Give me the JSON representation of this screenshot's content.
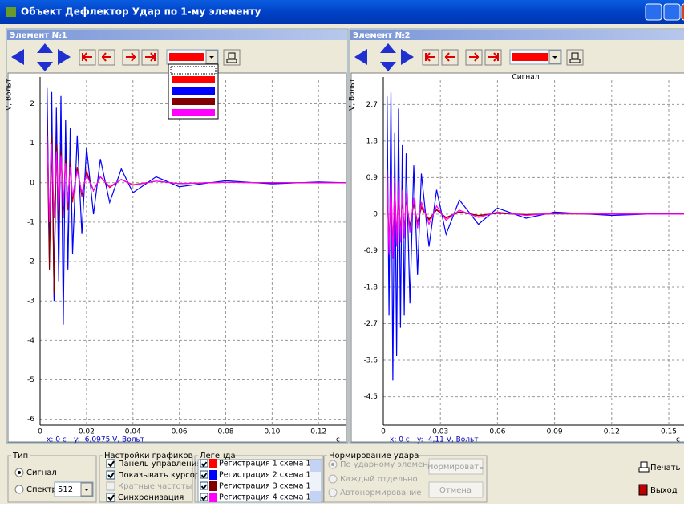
{
  "window": {
    "title": "Объект Дефлектор Удар по 1-му элементу"
  },
  "panels": [
    {
      "title": "Элемент №1"
    },
    {
      "title": "Элемент №2"
    }
  ],
  "chart_data": [
    {
      "type": "line",
      "ylabel": "V, Вольт",
      "xlabel": "с",
      "grid": true,
      "annotations": [
        "x: 0 с",
        "y: -6,0975 V, Вольт"
      ],
      "xlim": [
        0,
        0.132
      ],
      "ylim": [
        -6.15,
        2.6
      ],
      "xticks": [
        0,
        0.02,
        0.04,
        0.06,
        0.08,
        {
          "value": 0.1,
          "label": "0.10"
        },
        0.12
      ],
      "yticks": [
        -6,
        -5,
        -4,
        -3,
        -2,
        -1,
        0,
        1,
        2
      ],
      "x": [
        0.003,
        0.004,
        0.005,
        0.006,
        0.007,
        0.008,
        0.009,
        0.01,
        0.011,
        0.012,
        0.013,
        0.014,
        0.016,
        0.018,
        0.02,
        0.023,
        0.026,
        0.03,
        0.035,
        0.04,
        0.05,
        0.06,
        0.08,
        0.1,
        0.12,
        0.132
      ],
      "series": [
        {
          "color": "#ff0000",
          "values": [
            2.0,
            -1.5,
            1.8,
            -2.9,
            1.7,
            -1.2,
            1.0,
            -0.9,
            0.8,
            -0.7,
            0.6,
            -0.5,
            0.4,
            -0.35,
            0.3,
            -0.2,
            0.15,
            -0.12,
            0.08,
            -0.05,
            0.04,
            -0.02,
            0.01,
            0,
            0,
            0
          ]
        },
        {
          "color": "#0000ff",
          "values": [
            2.4,
            -2.0,
            2.3,
            -3.0,
            1.9,
            -2.5,
            2.2,
            -3.6,
            1.6,
            -2.2,
            1.4,
            -1.8,
            1.2,
            -1.3,
            0.9,
            -0.8,
            0.6,
            -0.5,
            0.35,
            -0.25,
            0.15,
            -0.1,
            0.05,
            -0.03,
            0.02,
            0
          ]
        },
        {
          "color": "#800000",
          "values": [
            1.5,
            -2.2,
            1.2,
            -2.8,
            1.0,
            -1.0,
            0.8,
            -0.7,
            0.6,
            -0.5,
            0.5,
            -0.4,
            0.35,
            -0.3,
            0.25,
            -0.2,
            0.15,
            -0.1,
            0.08,
            -0.06,
            0.04,
            -0.02,
            0.01,
            0,
            0,
            0
          ]
        },
        {
          "color": "#ff00ff",
          "values": [
            1.2,
            -1.0,
            1.0,
            -0.9,
            0.8,
            -0.7,
            0.7,
            -0.6,
            0.5,
            -0.5,
            0.4,
            -0.35,
            0.3,
            -0.25,
            0.2,
            -0.2,
            0.15,
            -0.1,
            0.08,
            -0.06,
            0.04,
            -0.02,
            0.01,
            0,
            0,
            0
          ]
        }
      ]
    },
    {
      "type": "line",
      "title": "Сигнал",
      "ylabel": "V, Вольт",
      "xlabel": "с",
      "grid": true,
      "annotations": [
        "x: 0 с",
        "y: -4,11 V, Вольт"
      ],
      "xlim": [
        0,
        0.158
      ],
      "ylim": [
        -5.2,
        3.3
      ],
      "xticks": [
        0,
        0.03,
        0.06,
        0.09,
        0.12,
        0.15
      ],
      "yticks": [
        -4.5,
        -3.6,
        -2.7,
        -1.8,
        -0.9,
        0,
        0.9,
        1.8,
        2.7
      ],
      "x": [
        0.002,
        0.003,
        0.004,
        0.005,
        0.006,
        0.007,
        0.008,
        0.009,
        0.01,
        0.011,
        0.012,
        0.014,
        0.016,
        0.018,
        0.02,
        0.024,
        0.028,
        0.033,
        0.04,
        0.05,
        0.06,
        0.075,
        0.09,
        0.12,
        0.15,
        0.158
      ],
      "series": [
        {
          "color": "#ff0000",
          "values": [
            1.0,
            -0.9,
            0.9,
            -1.0,
            0.8,
            -0.7,
            0.7,
            -0.6,
            0.5,
            -0.5,
            0.4,
            -0.35,
            0.3,
            -0.25,
            0.2,
            -0.15,
            0.12,
            -0.1,
            0.06,
            -0.04,
            0.03,
            -0.02,
            0.01,
            0,
            0,
            0
          ]
        },
        {
          "color": "#0000ff",
          "values": [
            2.9,
            -2.5,
            3.0,
            -4.1,
            2.0,
            -3.5,
            2.6,
            -2.8,
            1.7,
            -2.5,
            1.5,
            -2.2,
            1.2,
            -1.5,
            1.0,
            -0.8,
            0.6,
            -0.5,
            0.35,
            -0.25,
            0.15,
            -0.1,
            0.05,
            -0.03,
            0.02,
            0
          ]
        },
        {
          "color": "#800000",
          "values": [
            0.8,
            -0.8,
            0.7,
            -0.9,
            0.6,
            -0.6,
            0.5,
            -0.5,
            0.4,
            -0.4,
            0.35,
            -0.3,
            0.25,
            -0.2,
            0.15,
            -0.12,
            0.1,
            -0.08,
            0.05,
            -0.03,
            0.02,
            -0.01,
            0.01,
            0,
            0,
            0
          ]
        },
        {
          "color": "#ff00ff",
          "values": [
            1.1,
            -1.0,
            1.0,
            -1.1,
            0.9,
            -0.8,
            0.8,
            -0.7,
            0.6,
            -0.6,
            0.5,
            -0.45,
            0.4,
            -0.35,
            0.3,
            -0.25,
            0.2,
            -0.15,
            0.1,
            -0.08,
            0.05,
            -0.03,
            0.02,
            0,
            0,
            0
          ]
        }
      ]
    }
  ],
  "controls": {
    "type_group": {
      "title": "Тип",
      "options": [
        "Сигнал",
        "Спектр"
      ],
      "spectrum_size": "512"
    },
    "settings_group": {
      "title": "Настройки графиков",
      "options": [
        "Панель управления",
        "Показывать курсор",
        "Кратные частоты",
        "Синхронизация"
      ]
    },
    "legend": {
      "title": "Легенда",
      "items": [
        {
          "name": "Регистрация 1 схема 1",
          "color": "#ff0000"
        },
        {
          "name": "Регистрация 2 схема 1",
          "color": "#0000ff"
        },
        {
          "name": "Регистрация 3 схема 1",
          "color": "#800000"
        },
        {
          "name": "Регистрация 4 схема 1",
          "color": "#ff00ff"
        }
      ]
    },
    "norm_group": {
      "title": "Нормирование удара",
      "options": [
        "По ударному элементу",
        "Каждый отдельно",
        "Автонормирование"
      ],
      "buttons": [
        "Нормировать",
        "Отмена"
      ]
    },
    "print": "Печать",
    "exit": "Выход"
  }
}
